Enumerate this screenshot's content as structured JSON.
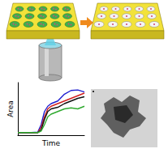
{
  "chart_data": {
    "type": "line",
    "xlabel": "Time",
    "ylabel": "Area",
    "x": [
      0,
      1,
      2,
      3,
      3.5,
      4,
      4.5,
      5,
      6,
      7,
      8,
      9,
      10
    ],
    "series": [
      {
        "color": "#1f1fd0",
        "values": [
          0.5,
          0.5,
          0.5,
          0.6,
          2,
          4.5,
          5.5,
          6,
          6.5,
          7.8,
          8.5,
          8.6,
          8.2
        ]
      },
      {
        "color": "#d01f1f",
        "values": [
          0.5,
          0.5,
          0.5,
          0.5,
          1.5,
          3.5,
          5,
          5.5,
          6,
          6.5,
          7,
          7.5,
          8
        ]
      },
      {
        "color": "#111111",
        "values": [
          0.5,
          0.5,
          0.5,
          0.5,
          1,
          3,
          4.5,
          5,
          5.3,
          6,
          6.5,
          7,
          7.3
        ]
      },
      {
        "color": "#2faa2f",
        "values": [
          0.5,
          0.5,
          0.5,
          0.5,
          0.8,
          2,
          3.5,
          4,
          4.5,
          5,
          5.2,
          5,
          5.5
        ]
      }
    ],
    "xlim": [
      0,
      10
    ],
    "ylim": [
      0,
      10
    ],
    "tick_labels": false,
    "grid": false
  }
}
